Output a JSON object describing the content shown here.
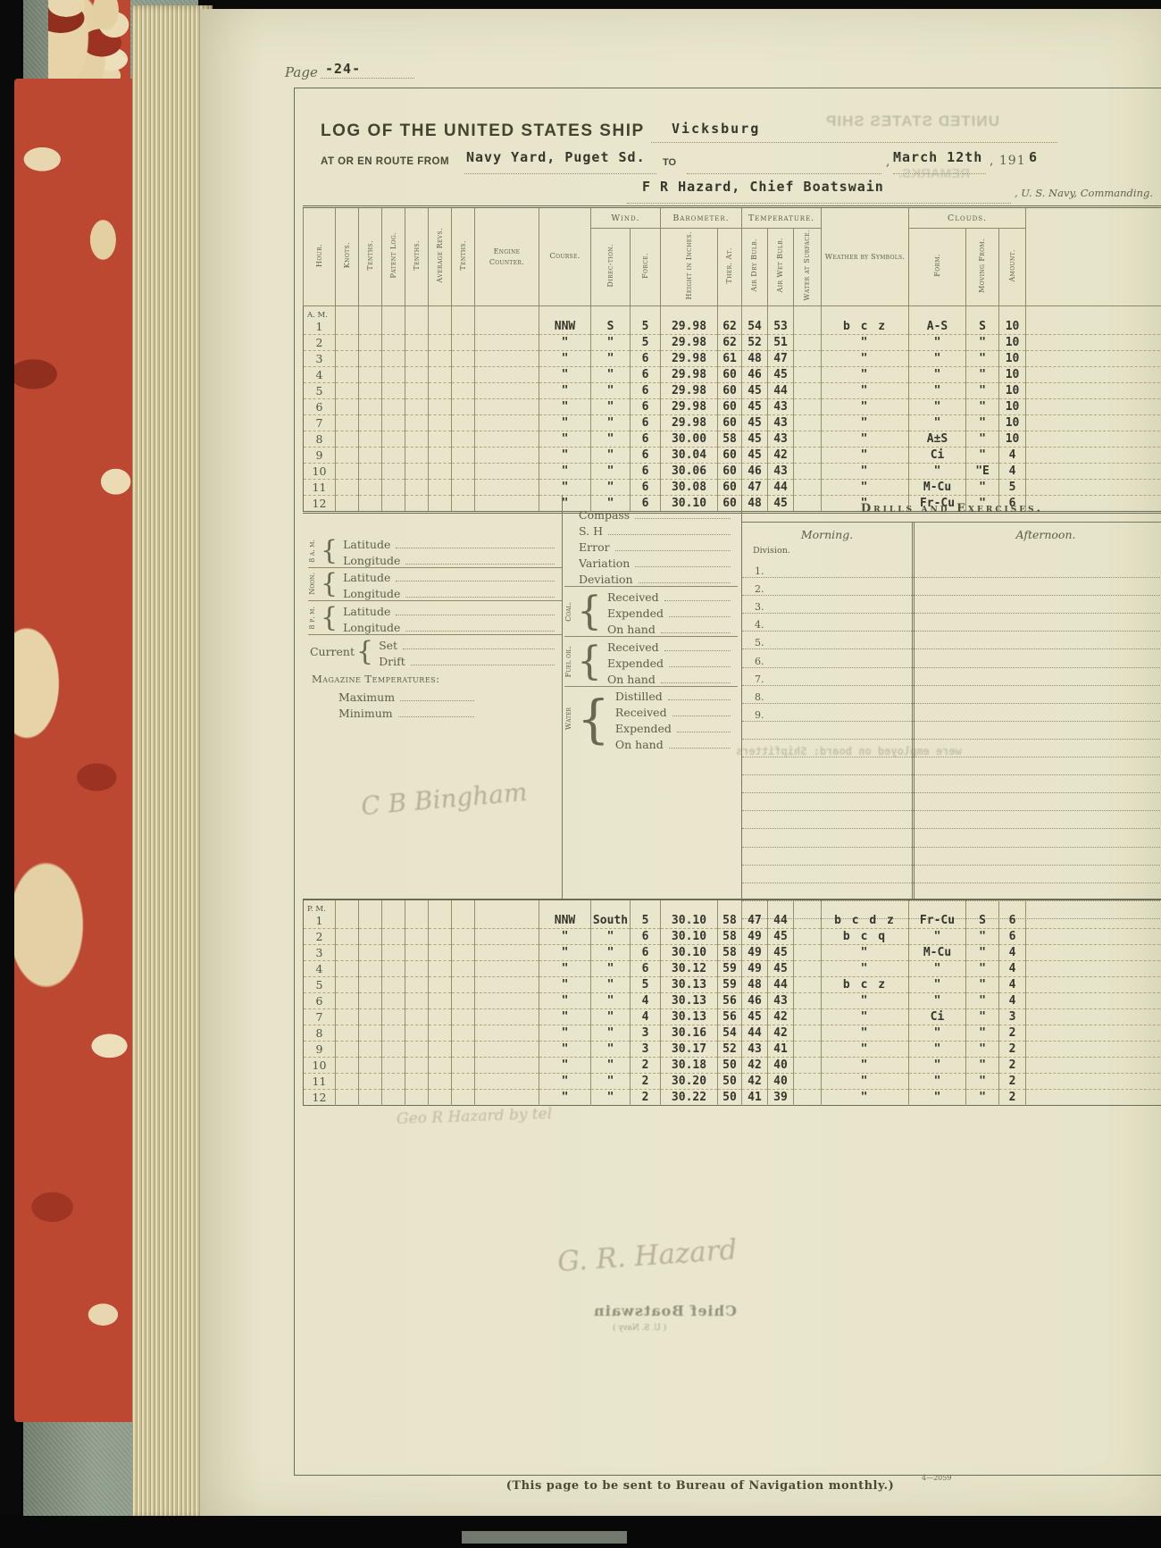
{
  "page_corner": {
    "label": "Page",
    "number": "-24-"
  },
  "header": {
    "title": "LOG OF THE UNITED STATES SHIP",
    "ship": "Vicksburg",
    "from_label": "AT OR EN ROUTE FROM",
    "from_value": "Navy Yard, Puget Sd.",
    "to_label": "TO",
    "comma": ",",
    "date_value": "March 12th",
    "year_printed": ", 191",
    "year_typed": "6",
    "commander": "F R Hazard, Chief Boatswain",
    "commanding": ", U. S. Navy, Commanding."
  },
  "log_table": {
    "groups": {
      "wind": "Wind.",
      "barometer": "Barometer.",
      "temperature": "Temperature.",
      "clouds": "Clouds."
    },
    "headers": {
      "hour": "Hour.",
      "knots": "Knots.",
      "tenths1": "Tenths.",
      "patent_log": "Patent Log.",
      "tenths2": "Tenths.",
      "average_revs": "Average Revs.",
      "tenths3": "Tenths.",
      "engine_counter": "Engine Counter.",
      "course": "Course.",
      "direction": "Direc-tion.",
      "force": "Force.",
      "height": "Height in Inches.",
      "ther_at": "Ther. At.",
      "air_dry": "Air Dry Bulb.",
      "air_wet": "Air Wet Bulb.",
      "water_surface": "Water at Surface.",
      "weather": "Weather by Symbols.",
      "form": "Form.",
      "moving_from": "Moving From.",
      "amount": "Amount."
    },
    "am_label": "A. M.",
    "pm_label": "P. M.",
    "am_rows": [
      {
        "hour": "1",
        "course": "NNW",
        "direction": "S",
        "force": "5",
        "height": "29.98",
        "ther": "62",
        "dry": "54",
        "wet": "53",
        "weather": "b c z",
        "form": "A-S",
        "moving": "S",
        "amount": "10"
      },
      {
        "hour": "2",
        "course": "\"",
        "direction": "\"",
        "force": "5",
        "height": "29.98",
        "ther": "62",
        "dry": "52",
        "wet": "51",
        "weather": "\"",
        "form": "\"",
        "moving": "\"",
        "amount": "10"
      },
      {
        "hour": "3",
        "course": "\"",
        "direction": "\"",
        "force": "6",
        "height": "29.98",
        "ther": "61",
        "dry": "48",
        "wet": "47",
        "weather": "\"",
        "form": "\"",
        "moving": "\"",
        "amount": "10"
      },
      {
        "hour": "4",
        "course": "\"",
        "direction": "\"",
        "force": "6",
        "height": "29.98",
        "ther": "60",
        "dry": "46",
        "wet": "45",
        "weather": "\"",
        "form": "\"",
        "moving": "\"",
        "amount": "10"
      },
      {
        "hour": "5",
        "course": "\"",
        "direction": "\"",
        "force": "6",
        "height": "29.98",
        "ther": "60",
        "dry": "45",
        "wet": "44",
        "weather": "\"",
        "form": "\"",
        "moving": "\"",
        "amount": "10"
      },
      {
        "hour": "6",
        "course": "\"",
        "direction": "\"",
        "force": "6",
        "height": "29.98",
        "ther": "60",
        "dry": "45",
        "wet": "43",
        "weather": "\"",
        "form": "\"",
        "moving": "\"",
        "amount": "10"
      },
      {
        "hour": "7",
        "course": "\"",
        "direction": "\"",
        "force": "6",
        "height": "29.98",
        "ther": "60",
        "dry": "45",
        "wet": "43",
        "weather": "\"",
        "form": "\"",
        "moving": "\"",
        "amount": "10"
      },
      {
        "hour": "8",
        "course": "\"",
        "direction": "\"",
        "force": "6",
        "height": "30.00",
        "ther": "58",
        "dry": "45",
        "wet": "43",
        "weather": "\"",
        "form": "A±S",
        "moving": "\"",
        "amount": "10"
      },
      {
        "hour": "9",
        "course": "\"",
        "direction": "\"",
        "force": "6",
        "height": "30.04",
        "ther": "60",
        "dry": "45",
        "wet": "42",
        "weather": "\"",
        "form": "Ci",
        "moving": "\"",
        "amount": "4"
      },
      {
        "hour": "10",
        "course": "\"",
        "direction": "\"",
        "force": "6",
        "height": "30.06",
        "ther": "60",
        "dry": "46",
        "wet": "43",
        "weather": "\"",
        "form": "\"",
        "moving": "\"E",
        "amount": "4"
      },
      {
        "hour": "11",
        "course": "\"",
        "direction": "\"",
        "force": "6",
        "height": "30.08",
        "ther": "60",
        "dry": "47",
        "wet": "44",
        "weather": "\"",
        "form": "M-Cu",
        "moving": "\"",
        "amount": "5"
      },
      {
        "hour": "12",
        "course": "\"",
        "direction": "\"",
        "force": "6",
        "height": "30.10",
        "ther": "60",
        "dry": "48",
        "wet": "45",
        "weather": "\"",
        "form": "Fr-Cu",
        "moving": "\"",
        "amount": "6"
      }
    ],
    "pm_rows": [
      {
        "hour": "1",
        "course": "NNW",
        "direction": "South",
        "force": "5",
        "height": "30.10",
        "ther": "58",
        "dry": "47",
        "wet": "44",
        "weather": "b c d z",
        "form": "Fr-Cu",
        "moving": "S",
        "amount": "6"
      },
      {
        "hour": "2",
        "course": "\"",
        "direction": "\"",
        "force": "6",
        "height": "30.10",
        "ther": "58",
        "dry": "49",
        "wet": "45",
        "weather": "b c q",
        "form": "\"",
        "moving": "\"",
        "amount": "6"
      },
      {
        "hour": "3",
        "course": "\"",
        "direction": "\"",
        "force": "6",
        "height": "30.10",
        "ther": "58",
        "dry": "49",
        "wet": "45",
        "weather": "\"",
        "form": "M-Cu",
        "moving": "\"",
        "amount": "4"
      },
      {
        "hour": "4",
        "course": "\"",
        "direction": "\"",
        "force": "6",
        "height": "30.12",
        "ther": "59",
        "dry": "49",
        "wet": "45",
        "weather": "\"",
        "form": "\"",
        "moving": "\"",
        "amount": "4"
      },
      {
        "hour": "5",
        "course": "\"",
        "direction": "\"",
        "force": "5",
        "height": "30.13",
        "ther": "59",
        "dry": "48",
        "wet": "44",
        "weather": "b c z",
        "form": "\"",
        "moving": "\"",
        "amount": "4"
      },
      {
        "hour": "6",
        "course": "\"",
        "direction": "\"",
        "force": "4",
        "height": "30.13",
        "ther": "56",
        "dry": "46",
        "wet": "43",
        "weather": "\"",
        "form": "\"",
        "moving": "\"",
        "amount": "4"
      },
      {
        "hour": "7",
        "course": "\"",
        "direction": "\"",
        "force": "4",
        "height": "30.13",
        "ther": "56",
        "dry": "45",
        "wet": "42",
        "weather": "\"",
        "form": "Ci",
        "moving": "\"",
        "amount": "3"
      },
      {
        "hour": "8",
        "course": "\"",
        "direction": "\"",
        "force": "3",
        "height": "30.16",
        "ther": "54",
        "dry": "44",
        "wet": "42",
        "weather": "\"",
        "form": "\"",
        "moving": "\"",
        "amount": "2"
      },
      {
        "hour": "9",
        "course": "\"",
        "direction": "\"",
        "force": "3",
        "height": "30.17",
        "ther": "52",
        "dry": "43",
        "wet": "41",
        "weather": "\"",
        "form": "\"",
        "moving": "\"",
        "amount": "2"
      },
      {
        "hour": "10",
        "course": "\"",
        "direction": "\"",
        "force": "2",
        "height": "30.18",
        "ther": "50",
        "dry": "42",
        "wet": "40",
        "weather": "\"",
        "form": "\"",
        "moving": "\"",
        "amount": "2"
      },
      {
        "hour": "11",
        "course": "\"",
        "direction": "\"",
        "force": "2",
        "height": "30.20",
        "ther": "50",
        "dry": "42",
        "wet": "40",
        "weather": "\"",
        "form": "\"",
        "moving": "\"",
        "amount": "2"
      },
      {
        "hour": "12",
        "course": "\"",
        "direction": "\"",
        "force": "2",
        "height": "30.22",
        "ther": "50",
        "dry": "41",
        "wet": "39",
        "weather": "\"",
        "form": "\"",
        "moving": "\"",
        "amount": "2"
      }
    ]
  },
  "middle": {
    "positions": {
      "am8": "8 a. m.",
      "noon": "Noon.",
      "pm8": "8 p. m.",
      "latitude": "Latitude",
      "longitude": "Longitude"
    },
    "current": {
      "label": "Current",
      "set": "Set",
      "drift": "Drift"
    },
    "magazine": {
      "title": "Magazine Temperatures:",
      "max": "Maximum",
      "min": "Minimum"
    },
    "compass": {
      "rows": [
        "Compass",
        "S. H",
        "Error",
        "Variation",
        "Deviation"
      ]
    },
    "coal": {
      "label": "Coal.",
      "rows": [
        "Received",
        "Expended",
        "On hand"
      ]
    },
    "fuel": {
      "label": "Fuel oil.",
      "rows": [
        "Received",
        "Expended",
        "On hand"
      ]
    },
    "water": {
      "label": "Water",
      "rows": [
        "Distilled",
        "Received",
        "Expended",
        "On hand"
      ]
    },
    "drills": {
      "title": "Drills and Exercises.",
      "morning": "Morning.",
      "afternoon": "Afternoon.",
      "division": "Division.",
      "numbers": [
        "1",
        "2",
        "3",
        "4",
        "5",
        "6",
        "7",
        "8",
        "9"
      ]
    }
  },
  "footer": {
    "note": "(This page to be sent to Bureau of Navigation monthly.)",
    "form_number": "4—2059"
  },
  "bleedthrough": {
    "mirrored_header": "UNITED STATES SHIP",
    "mirrored_remarks": "REMARKS.",
    "typed_note": "were employed on board: Shipfitters",
    "upper_signature": "C B Bingham",
    "pencil_note": "Geo R Hazard by tel",
    "lower_signature": "G. R. Hazard",
    "lower_stamp": "Chief Boatswain",
    "lower_small": "( U. S. Navy )"
  }
}
